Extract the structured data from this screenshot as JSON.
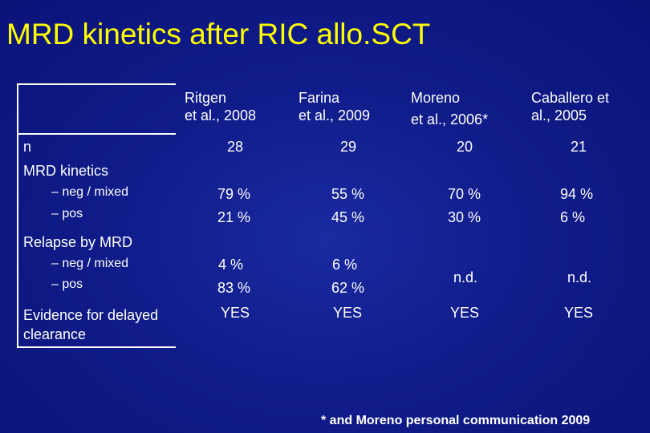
{
  "title": "MRD kinetics after RIC allo.SCT",
  "columns": [
    {
      "line1": "Ritgen",
      "line2": "et al., 2008"
    },
    {
      "line1": "Farina",
      "line2": "et al., 2009"
    },
    {
      "line1": "Moreno",
      "line2": "et al., 2006*"
    },
    {
      "line1": "Caballero et",
      "line2": "al., 2005"
    }
  ],
  "rows": {
    "n_label": "n",
    "n": [
      "28",
      "29",
      "20",
      "21"
    ],
    "mrd_label": "MRD kinetics",
    "mrd_neg_label": "– neg / mixed",
    "mrd_pos_label": "– pos",
    "mrd_neg": [
      "79 %",
      "55 %",
      "70 %",
      "94 %"
    ],
    "mrd_pos": [
      "21 %",
      "45 %",
      "30 %",
      "6 %"
    ],
    "relapse_label": "Relapse by MRD",
    "relapse_neg_label": "– neg / mixed",
    "relapse_pos_label": "– pos",
    "relapse_neg": [
      "4 %",
      "6 %"
    ],
    "relapse_pos": [
      "83 %",
      "62 %"
    ],
    "relapse_nd": [
      "n.d.",
      "n.d."
    ],
    "delayed_label_1": "Evidence for delayed",
    "delayed_label_2": "clearance",
    "delayed": [
      "YES",
      "YES",
      "YES",
      "YES"
    ]
  },
  "footnote": "* and Moreno personal communication 2009"
}
